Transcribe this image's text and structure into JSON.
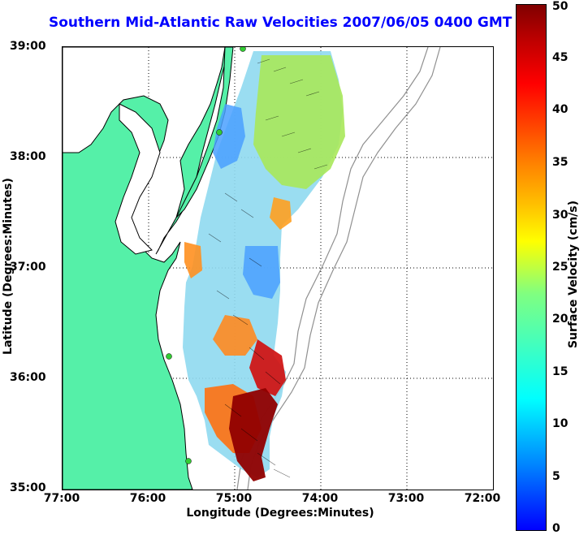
{
  "title": "Southern Mid-Atlantic Raw Velocities 2007/06/05 0400 GMT",
  "x_axis": {
    "label": "Longitude (Degrees:Minutes)",
    "ticks": [
      "77:00",
      "76:00",
      "75:00",
      "74:00",
      "73:00",
      "72:00"
    ]
  },
  "y_axis": {
    "label": "Latitude (Degrees:Minutes)",
    "ticks": [
      "39:00",
      "38:00",
      "37:00",
      "36:00",
      "35:00"
    ]
  },
  "colorbar": {
    "label": "Surface Velocity (cm/s)",
    "ticks": [
      "50",
      "45",
      "40",
      "35",
      "30",
      "25",
      "20",
      "15",
      "10",
      "5",
      "0"
    ],
    "range": [
      0,
      50
    ],
    "colormap": "jet"
  },
  "colors": {
    "title": "#0000ff",
    "land": "#55f0a8",
    "coastline": "#000000",
    "bathymetry": "#909090",
    "station_marker": "#33cc33"
  },
  "map": {
    "lon_range": [
      -77,
      -72
    ],
    "lat_range": [
      35,
      39
    ],
    "grid": "dotted"
  }
}
